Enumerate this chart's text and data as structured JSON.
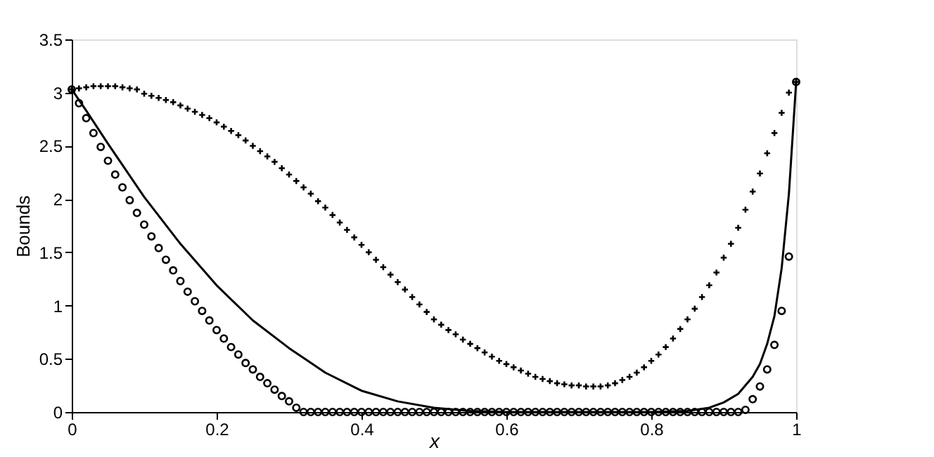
{
  "chart_data": {
    "type": "line",
    "xlabel": "x",
    "ylabel": "Bounds",
    "xlim": [
      0,
      1
    ],
    "xticks": [
      0,
      0.2,
      0.4,
      0.6,
      0.8,
      1
    ],
    "ylim": [
      0,
      3.5
    ],
    "yticks": [
      0,
      0.5,
      1,
      1.5,
      2,
      2.5,
      3,
      3.5
    ],
    "grid": false,
    "series": [
      {
        "color": "#000000",
        "marker": "none",
        "line_style": "solid",
        "x": [
          0,
          0.02,
          0.05,
          0.07,
          0.1,
          0.15,
          0.2,
          0.25,
          0.3,
          0.35,
          0.4,
          0.45,
          0.5,
          0.55,
          0.6,
          0.8,
          0.85,
          0.88,
          0.9,
          0.92,
          0.94,
          0.95,
          0.96,
          0.97,
          0.98,
          0.99,
          1.0
        ],
        "values": [
          3.03,
          2.83,
          2.52,
          2.32,
          2.02,
          1.58,
          1.19,
          0.86,
          0.6,
          0.37,
          0.2,
          0.1,
          0.04,
          0.01,
          0,
          0,
          0.01,
          0.04,
          0.09,
          0.17,
          0.33,
          0.45,
          0.64,
          0.9,
          1.35,
          2.05,
          3.1
        ]
      },
      {
        "type": "scatter",
        "color": "#000000",
        "marker": "circle",
        "x": [
          0,
          0.01,
          0.02,
          0.03,
          0.04,
          0.05,
          0.06,
          0.07,
          0.08,
          0.09,
          0.1,
          0.11,
          0.12,
          0.13,
          0.14,
          0.15,
          0.16,
          0.17,
          0.18,
          0.19,
          0.2,
          0.21,
          0.22,
          0.23,
          0.24,
          0.25,
          0.26,
          0.27,
          0.28,
          0.29,
          0.3,
          0.31,
          0.32,
          0.33,
          0.34,
          0.35,
          0.36,
          0.37,
          0.38,
          0.39,
          0.4,
          0.41,
          0.42,
          0.43,
          0.44,
          0.45,
          0.46,
          0.47,
          0.48,
          0.49,
          0.5,
          0.51,
          0.52,
          0.53,
          0.54,
          0.55,
          0.56,
          0.57,
          0.58,
          0.59,
          0.6,
          0.61,
          0.62,
          0.63,
          0.64,
          0.65,
          0.66,
          0.67,
          0.68,
          0.69,
          0.7,
          0.71,
          0.72,
          0.73,
          0.74,
          0.75,
          0.76,
          0.77,
          0.78,
          0.79,
          0.8,
          0.81,
          0.82,
          0.83,
          0.84,
          0.85,
          0.86,
          0.87,
          0.88,
          0.89,
          0.9,
          0.91,
          0.92,
          0.93,
          0.94,
          0.95,
          0.96,
          0.97,
          0.98,
          0.99,
          1.0
        ],
        "values": [
          3.03,
          2.9,
          2.76,
          2.62,
          2.49,
          2.36,
          2.23,
          2.11,
          1.99,
          1.87,
          1.76,
          1.65,
          1.54,
          1.43,
          1.33,
          1.23,
          1.13,
          1.04,
          0.95,
          0.86,
          0.77,
          0.69,
          0.61,
          0.54,
          0.46,
          0.4,
          0.33,
          0.27,
          0.21,
          0.15,
          0.1,
          0.04,
          0,
          0,
          0,
          0,
          0,
          0,
          0,
          0,
          0,
          0,
          0,
          0,
          0,
          0,
          0,
          0,
          0,
          0,
          0,
          0,
          0,
          0,
          0,
          0,
          0,
          0,
          0,
          0,
          0,
          0,
          0,
          0,
          0,
          0,
          0,
          0,
          0,
          0,
          0,
          0,
          0,
          0,
          0,
          0,
          0,
          0,
          0,
          0,
          0,
          0,
          0,
          0,
          0,
          0,
          0,
          0,
          0,
          0,
          0,
          0,
          0,
          0.02,
          0.12,
          0.24,
          0.4,
          0.63,
          0.95,
          1.46,
          3.1
        ]
      },
      {
        "type": "scatter",
        "color": "#000000",
        "marker": "cross",
        "x": [
          0,
          0.01,
          0.02,
          0.03,
          0.04,
          0.05,
          0.06,
          0.07,
          0.08,
          0.09,
          0.1,
          0.11,
          0.12,
          0.13,
          0.14,
          0.15,
          0.16,
          0.17,
          0.18,
          0.19,
          0.2,
          0.21,
          0.22,
          0.23,
          0.24,
          0.25,
          0.26,
          0.27,
          0.28,
          0.29,
          0.3,
          0.31,
          0.32,
          0.33,
          0.34,
          0.35,
          0.36,
          0.37,
          0.38,
          0.39,
          0.4,
          0.41,
          0.42,
          0.43,
          0.44,
          0.45,
          0.46,
          0.47,
          0.48,
          0.49,
          0.5,
          0.51,
          0.52,
          0.53,
          0.54,
          0.55,
          0.56,
          0.57,
          0.58,
          0.59,
          0.6,
          0.61,
          0.62,
          0.63,
          0.64,
          0.65,
          0.66,
          0.67,
          0.68,
          0.69,
          0.7,
          0.71,
          0.72,
          0.73,
          0.74,
          0.75,
          0.76,
          0.77,
          0.78,
          0.79,
          0.8,
          0.81,
          0.82,
          0.83,
          0.84,
          0.85,
          0.86,
          0.87,
          0.88,
          0.89,
          0.9,
          0.91,
          0.92,
          0.93,
          0.94,
          0.95,
          0.96,
          0.97,
          0.98,
          0.99,
          1.0
        ],
        "values": [
          3.03,
          3.04,
          3.05,
          3.06,
          3.06,
          3.06,
          3.06,
          3.05,
          3.04,
          3.03,
          2.99,
          2.97,
          2.95,
          2.93,
          2.91,
          2.88,
          2.85,
          2.82,
          2.79,
          2.76,
          2.72,
          2.68,
          2.64,
          2.6,
          2.55,
          2.5,
          2.45,
          2.4,
          2.35,
          2.29,
          2.23,
          2.17,
          2.11,
          2.05,
          1.98,
          1.92,
          1.85,
          1.78,
          1.71,
          1.64,
          1.57,
          1.5,
          1.43,
          1.36,
          1.29,
          1.22,
          1.15,
          1.08,
          1.01,
          0.94,
          0.87,
          0.82,
          0.77,
          0.73,
          0.68,
          0.64,
          0.6,
          0.56,
          0.52,
          0.48,
          0.45,
          0.42,
          0.39,
          0.36,
          0.33,
          0.31,
          0.29,
          0.27,
          0.26,
          0.25,
          0.25,
          0.24,
          0.24,
          0.24,
          0.25,
          0.27,
          0.3,
          0.33,
          0.37,
          0.42,
          0.48,
          0.54,
          0.61,
          0.69,
          0.78,
          0.87,
          0.97,
          1.08,
          1.19,
          1.31,
          1.45,
          1.58,
          1.73,
          1.9,
          2.07,
          2.24,
          2.43,
          2.62,
          2.81,
          3.0,
          3.1
        ]
      }
    ]
  }
}
